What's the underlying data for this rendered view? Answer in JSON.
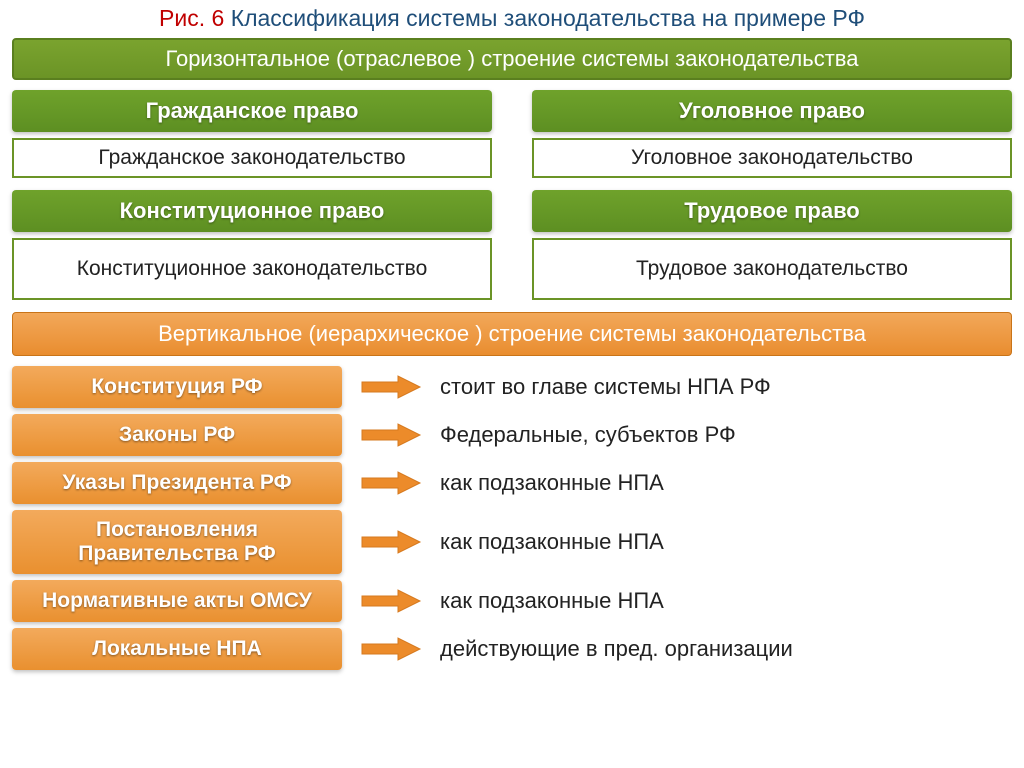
{
  "colors": {
    "green_bg": "#6b9426",
    "green_border": "#5a7f1f",
    "orange_bg": "#e9902f",
    "orange_arrow": "#ec8b2a",
    "title_red": "#c00000",
    "title_blue": "#1f4e79",
    "text_dark": "#222222"
  },
  "title": {
    "part_red": "Рис. 6 ",
    "part_blue": "Классификация системы законодательства на примере РФ"
  },
  "horizontal_banner": "Горизонтальное (отраслевое ) строение системы законодательства",
  "horizontal": {
    "left": [
      {
        "law": "Гражданское право",
        "legis": "Гражданское законодательство"
      },
      {
        "law": "Конституционное право",
        "legis": "Конституционное законодательство"
      }
    ],
    "right": [
      {
        "law": "Уголовное право",
        "legis": "Уголовное законодательство"
      },
      {
        "law": "Трудовое право",
        "legis": "Трудовое законодательство"
      }
    ]
  },
  "vertical_banner": "Вертикальное (иерархическое ) строение системы законодательства",
  "hierarchy": [
    {
      "label": "Конституция РФ",
      "desc": "стоит во главе системы НПА РФ"
    },
    {
      "label": "Законы РФ",
      "desc": "Федеральные, субъектов РФ"
    },
    {
      "label": "Указы Президента РФ",
      "desc": "как подзаконные НПА"
    },
    {
      "label": "Постановления Правительства РФ",
      "desc": "как подзаконные НПА"
    },
    {
      "label": "Нормативные акты ОМСУ",
      "desc": "как подзаконные НПА"
    },
    {
      "label": "Локальные НПА",
      "desc": "действующие в пред. организации"
    }
  ]
}
